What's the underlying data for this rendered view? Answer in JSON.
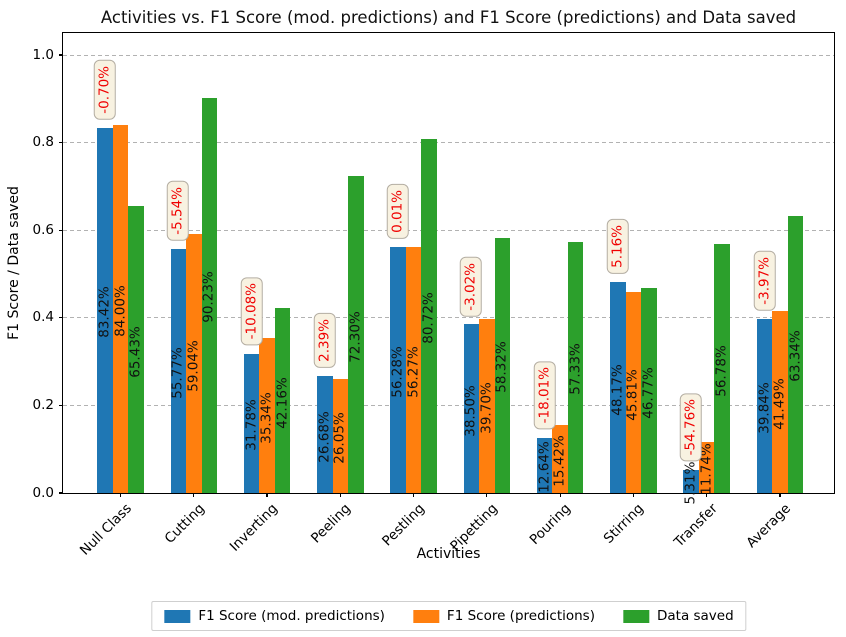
{
  "chart_data": {
    "type": "bar",
    "title": "Activities vs. F1 Score (mod. predictions) and F1 Score (predictions) and Data saved",
    "xlabel": "Activities",
    "ylabel": "F1 Score / Data saved",
    "categories": [
      "Null Class",
      "Cutting",
      "Inverting",
      "Peeling",
      "Pestling",
      "Pipetting",
      "Pouring",
      "Stirring",
      "Transfer",
      "Average"
    ],
    "series": [
      {
        "name": "F1 Score (mod. predictions)",
        "color": "#1f77b4",
        "values_pct": [
          83.42,
          55.77,
          31.78,
          26.68,
          56.28,
          38.5,
          12.64,
          48.17,
          5.31,
          39.84
        ]
      },
      {
        "name": "F1 Score (predictions)",
        "color": "#ff7f0e",
        "values_pct": [
          84.0,
          59.04,
          35.34,
          26.05,
          56.27,
          39.7,
          15.42,
          45.81,
          11.74,
          41.49
        ]
      },
      {
        "name": "Data saved",
        "color": "#2ca02c",
        "values_pct": [
          65.43,
          90.23,
          42.16,
          72.3,
          80.72,
          58.32,
          57.33,
          46.77,
          56.78,
          63.34
        ]
      }
    ],
    "group_annotations": {
      "texts": [
        "-0.70%",
        "-5.54%",
        "-10.08%",
        "2.39%",
        "0.01%",
        "-3.02%",
        "-18.01%",
        "5.16%",
        "-54.76%",
        "-3.97%"
      ],
      "text_color": "#f00000",
      "box_bg": "#f8f2e1",
      "box_border": "#b4aea3"
    },
    "bar_label_suffix": "%",
    "ylim": [
      0.0,
      1.05
    ],
    "ytick_labels": [
      "0.0",
      "0.2",
      "0.4",
      "0.6",
      "0.8",
      "1.0"
    ],
    "grid": "horizontal-dashed",
    "legend_position": "bottom-center"
  }
}
